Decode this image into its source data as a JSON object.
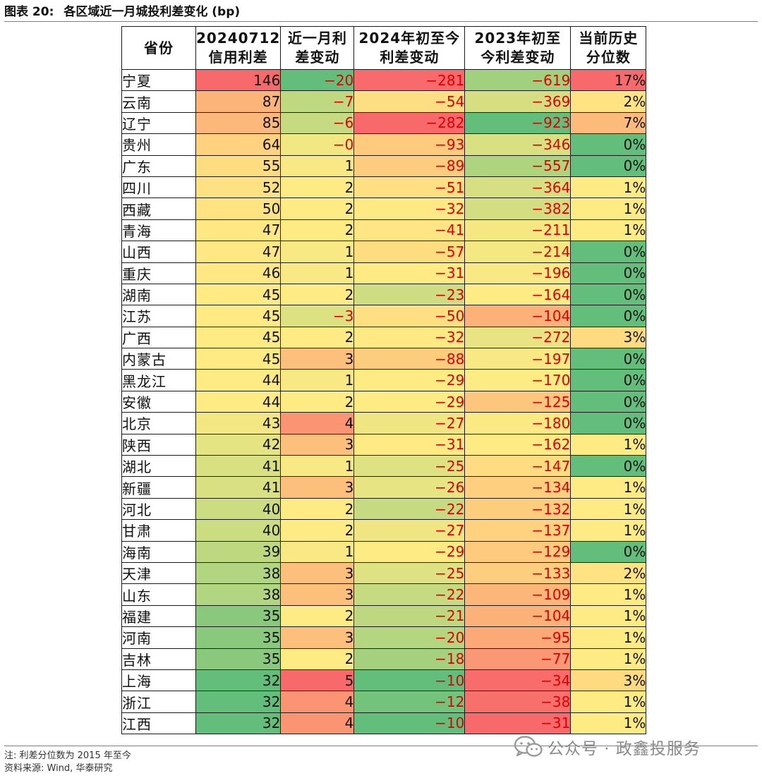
{
  "title": {
    "label": "图表 20:",
    "text": "各区域近一月城投利差变化 (bp)"
  },
  "table": {
    "headers": [
      "省份",
      "20240712\n信用利差",
      "近一月利\n差变动",
      "2024年初至今\n利差变动",
      "2023年初至\n今利差变动",
      "当前历史\n分位数"
    ],
    "rows": [
      [
        "宁夏",
        "146",
        "-20",
        "-281",
        "-619",
        "17%"
      ],
      [
        "云南",
        "87",
        "-7",
        "-54",
        "-369",
        "2%"
      ],
      [
        "辽宁",
        "85",
        "-6",
        "-282",
        "-923",
        "7%"
      ],
      [
        "贵州",
        "64",
        "-0",
        "-93",
        "-346",
        "0%"
      ],
      [
        "广东",
        "55",
        "1",
        "-89",
        "-557",
        "0%"
      ],
      [
        "四川",
        "52",
        "2",
        "-51",
        "-364",
        "1%"
      ],
      [
        "西藏",
        "50",
        "2",
        "-32",
        "-382",
        "1%"
      ],
      [
        "青海",
        "47",
        "2",
        "-41",
        "-211",
        "1%"
      ],
      [
        "山西",
        "47",
        "1",
        "-57",
        "-214",
        "0%"
      ],
      [
        "重庆",
        "46",
        "1",
        "-31",
        "-196",
        "0%"
      ],
      [
        "湖南",
        "45",
        "2",
        "-23",
        "-164",
        "0%"
      ],
      [
        "江苏",
        "45",
        "-3",
        "-50",
        "-104",
        "0%"
      ],
      [
        "广西",
        "45",
        "2",
        "-32",
        "-272",
        "3%"
      ],
      [
        "内蒙古",
        "45",
        "3",
        "-88",
        "-197",
        "0%"
      ],
      [
        "黑龙江",
        "44",
        "1",
        "-29",
        "-170",
        "0%"
      ],
      [
        "安徽",
        "44",
        "2",
        "-29",
        "-125",
        "0%"
      ],
      [
        "北京",
        "43",
        "4",
        "-27",
        "-180",
        "0%"
      ],
      [
        "陕西",
        "42",
        "3",
        "-31",
        "-162",
        "1%"
      ],
      [
        "湖北",
        "41",
        "1",
        "-25",
        "-147",
        "0%"
      ],
      [
        "新疆",
        "41",
        "3",
        "-26",
        "-134",
        "1%"
      ],
      [
        "河北",
        "40",
        "2",
        "-22",
        "-132",
        "1%"
      ],
      [
        "甘肃",
        "40",
        "2",
        "-27",
        "-137",
        "1%"
      ],
      [
        "海南",
        "39",
        "1",
        "-29",
        "-129",
        "0%"
      ],
      [
        "天津",
        "38",
        "3",
        "-25",
        "-133",
        "2%"
      ],
      [
        "山东",
        "38",
        "3",
        "-22",
        "-109",
        "1%"
      ],
      [
        "福建",
        "35",
        "2",
        "-21",
        "-104",
        "1%"
      ],
      [
        "河南",
        "35",
        "3",
        "-20",
        "-95",
        "1%"
      ],
      [
        "吉林",
        "35",
        "2",
        "-18",
        "-77",
        "1%"
      ],
      [
        "上海",
        "32",
        "5",
        "-10",
        "-34",
        "3%"
      ],
      [
        "浙江",
        "32",
        "4",
        "-12",
        "-38",
        "1%"
      ],
      [
        "江西",
        "32",
        "4",
        "-10",
        "-31",
        "1%"
      ]
    ],
    "colors": {
      "red": "#f8696b",
      "orange": "#fba276",
      "yellow": "#ffeb84",
      "green": "#63be7b",
      "negative_text": "#e00000"
    }
  },
  "footer": {
    "note": "注: 利差分位数为 2015 年至今",
    "source": "资料来源: Wind, 华泰研究"
  },
  "watermark": {
    "text": "公众号 · 政鑫投服务",
    "icon": "wechat-icon"
  }
}
